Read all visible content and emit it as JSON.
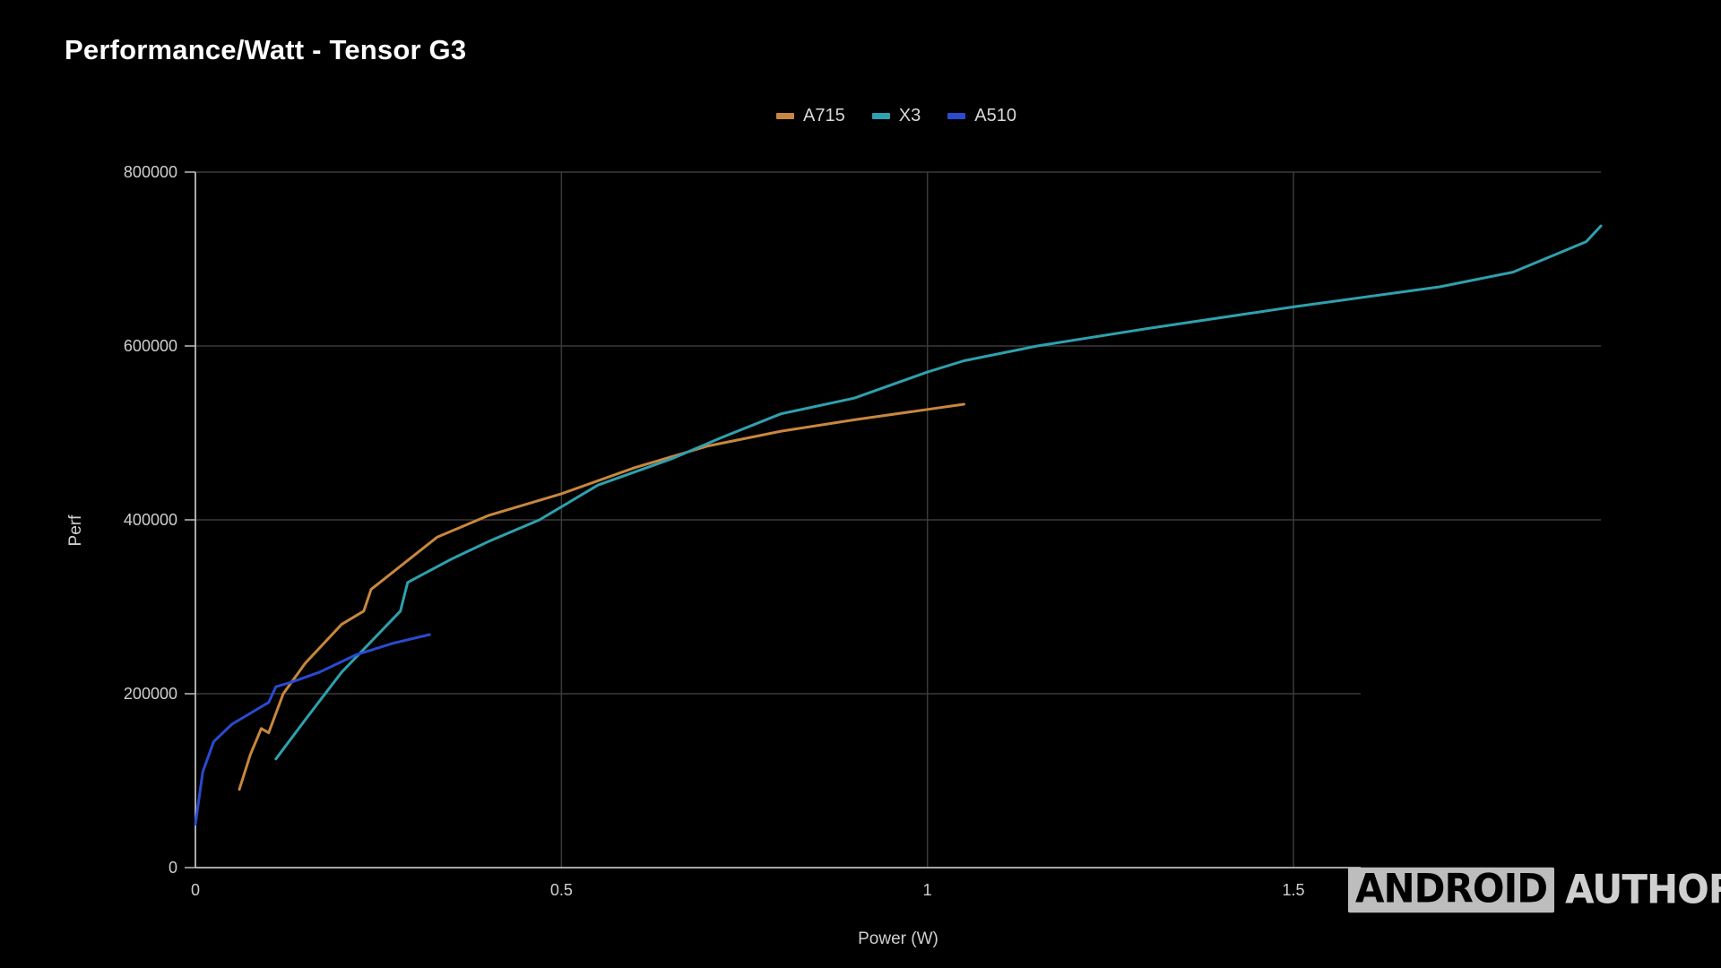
{
  "chart_data": {
    "type": "line",
    "title": "Performance/Watt - Tensor G3",
    "xlabel": "Power (W)",
    "ylabel": "Perf",
    "xlim": [
      0,
      1.92
    ],
    "ylim": [
      0,
      800000
    ],
    "xticks": [
      0,
      0.5,
      1,
      1.5
    ],
    "xtick_labels": [
      "0",
      "0.5",
      "1",
      "1.5"
    ],
    "yticks": [
      0,
      200000,
      400000,
      600000,
      800000
    ],
    "ytick_labels": [
      "0",
      "200000",
      "400000",
      "600000",
      "800000"
    ],
    "grid": true,
    "legend_position": "top-center",
    "series": [
      {
        "name": "A715",
        "color": "#c8873e",
        "points": [
          [
            0.06,
            90000
          ],
          [
            0.075,
            130000
          ],
          [
            0.09,
            160000
          ],
          [
            0.1,
            155000
          ],
          [
            0.12,
            200000
          ],
          [
            0.15,
            235000
          ],
          [
            0.2,
            280000
          ],
          [
            0.23,
            295000
          ],
          [
            0.24,
            320000
          ],
          [
            0.3,
            360000
          ],
          [
            0.33,
            380000
          ],
          [
            0.4,
            405000
          ],
          [
            0.5,
            430000
          ],
          [
            0.6,
            460000
          ],
          [
            0.7,
            485000
          ],
          [
            0.8,
            502000
          ],
          [
            0.9,
            515000
          ],
          [
            1.0,
            527000
          ],
          [
            1.05,
            533000
          ]
        ]
      },
      {
        "name": "X3",
        "color": "#2fa0ae",
        "points": [
          [
            0.11,
            125000
          ],
          [
            0.15,
            170000
          ],
          [
            0.2,
            225000
          ],
          [
            0.28,
            295000
          ],
          [
            0.29,
            328000
          ],
          [
            0.35,
            355000
          ],
          [
            0.4,
            375000
          ],
          [
            0.47,
            400000
          ],
          [
            0.55,
            440000
          ],
          [
            0.65,
            470000
          ],
          [
            0.72,
            495000
          ],
          [
            0.8,
            522000
          ],
          [
            0.9,
            540000
          ],
          [
            1.0,
            570000
          ],
          [
            1.05,
            583000
          ],
          [
            1.15,
            600000
          ],
          [
            1.3,
            620000
          ],
          [
            1.5,
            645000
          ],
          [
            1.7,
            668000
          ],
          [
            1.8,
            685000
          ],
          [
            1.9,
            720000
          ],
          [
            1.92,
            738000
          ]
        ]
      },
      {
        "name": "A510",
        "color": "#2a4ad0",
        "points": [
          [
            0.0,
            50000
          ],
          [
            0.01,
            110000
          ],
          [
            0.025,
            145000
          ],
          [
            0.05,
            165000
          ],
          [
            0.09,
            185000
          ],
          [
            0.1,
            190000
          ],
          [
            0.11,
            208000
          ],
          [
            0.13,
            213000
          ],
          [
            0.17,
            225000
          ],
          [
            0.22,
            245000
          ],
          [
            0.27,
            258000
          ],
          [
            0.32,
            268000
          ]
        ]
      }
    ]
  },
  "watermark": {
    "part1": "ANDROID",
    "part2": "AUTHORITY"
  }
}
